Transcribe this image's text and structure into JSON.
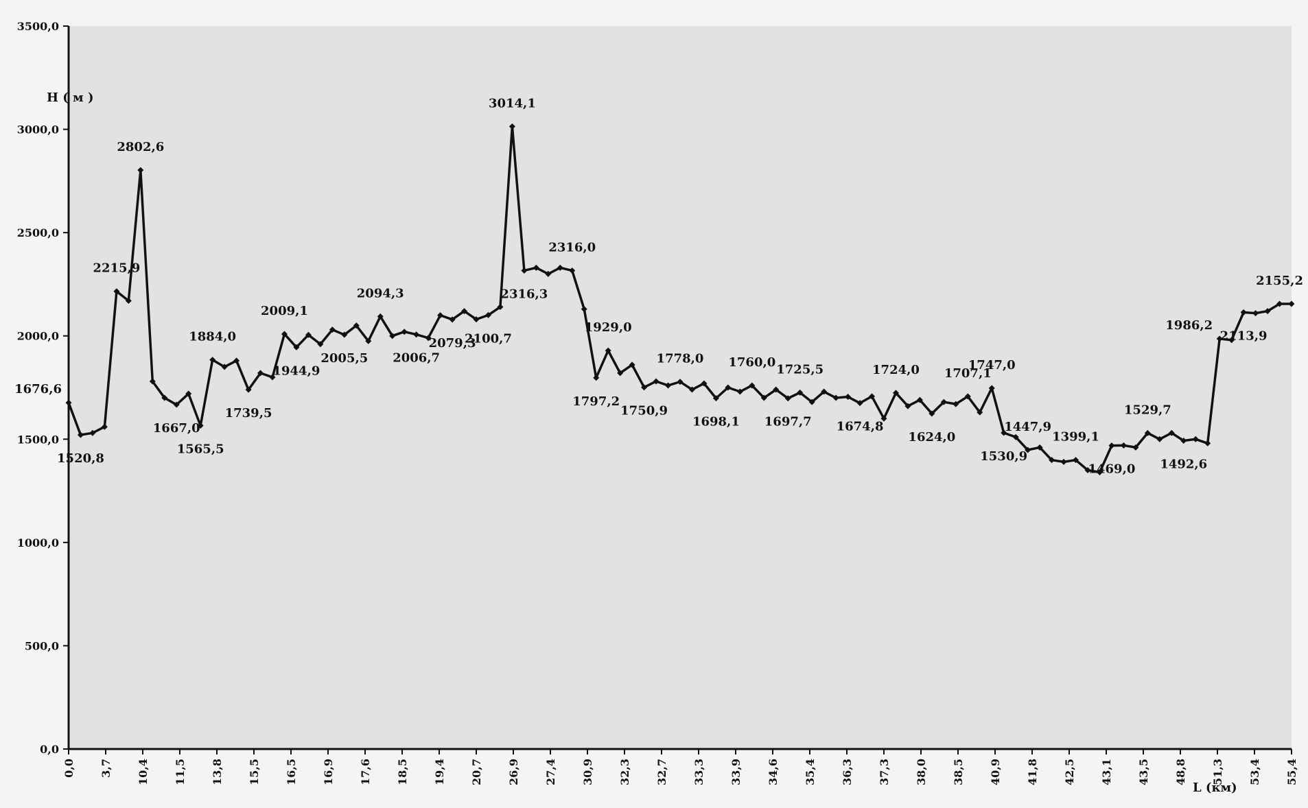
{
  "chart_data": {
    "type": "line",
    "ylabel": "H ( м )",
    "xlabel": "L (км)",
    "ylim": [
      0,
      3500
    ],
    "y_ticks": [
      "0,0",
      "500,0",
      "1000,0",
      "1500,0",
      "2000,0",
      "2500,0",
      "3000,0",
      "3500,0"
    ],
    "x_tick_labels": [
      "0,0",
      "3,7",
      "10,4",
      "11,5",
      "13,8",
      "15,5",
      "16,5",
      "16,9",
      "17,6",
      "18,5",
      "19,4",
      "20,7",
      "26,9",
      "27,4",
      "30,9",
      "32,3",
      "32,7",
      "33,3",
      "33,9",
      "34,6",
      "35,4",
      "36,3",
      "37,3",
      "38,0",
      "38,5",
      "40,9",
      "41,8",
      "42,5",
      "43,1",
      "43,5",
      "48,8",
      "51,3",
      "53,4",
      "55,4"
    ],
    "series": [
      {
        "values": [
          1676.6,
          1520.8,
          1530,
          1560,
          2215.9,
          2170,
          2802.6,
          1780,
          1700,
          1667.0,
          1720,
          1565.5,
          1884.0,
          1850,
          1880,
          1739.5,
          1820,
          1800,
          2009.1,
          1944.9,
          2005,
          1960,
          2030,
          2005.5,
          2050,
          1975,
          2094.3,
          2000,
          2020,
          2006.7,
          1990,
          2100,
          2079.3,
          2120,
          2080,
          2100.7,
          2140,
          3014.1,
          2316.3,
          2330,
          2300,
          2330,
          2316.0,
          2130,
          1797.2,
          1929.0,
          1820,
          1860,
          1750.9,
          1780,
          1760,
          1778.0,
          1740,
          1770,
          1698.1,
          1750,
          1730,
          1760.0,
          1700,
          1740,
          1697.7,
          1725.5,
          1680,
          1730,
          1700,
          1705,
          1674.8,
          1707.1,
          1600,
          1724.0,
          1660,
          1690,
          1624.0,
          1680,
          1670,
          1707.1,
          1630,
          1747.0,
          1530.9,
          1510,
          1447.9,
          1460,
          1399.1,
          1390,
          1399.1,
          1350,
          1340,
          1469.0,
          1470,
          1460,
          1529.7,
          1500,
          1530,
          1492.6,
          1500,
          1480,
          1986.2,
          1980,
          2113.9,
          2110,
          2120,
          2155.2,
          2155.2
        ]
      }
    ],
    "data_labels": [
      {
        "index": 0,
        "text": "1676,6",
        "pos": "left"
      },
      {
        "index": 1,
        "text": "1520,8",
        "pos": "below"
      },
      {
        "index": 4,
        "text": "2215,9",
        "pos": "above"
      },
      {
        "index": 6,
        "text": "2802,6",
        "pos": "above"
      },
      {
        "index": 9,
        "text": "1667,0",
        "pos": "below"
      },
      {
        "index": 11,
        "text": "1565,5",
        "pos": "below"
      },
      {
        "index": 12,
        "text": "1884,0",
        "pos": "above"
      },
      {
        "index": 15,
        "text": "1739,5",
        "pos": "below"
      },
      {
        "index": 18,
        "text": "2009,1",
        "pos": "above"
      },
      {
        "index": 19,
        "text": "1944,9",
        "pos": "below"
      },
      {
        "index": 23,
        "text": "2005,5",
        "pos": "below"
      },
      {
        "index": 26,
        "text": "2094,3",
        "pos": "above"
      },
      {
        "index": 29,
        "text": "2006,7",
        "pos": "below"
      },
      {
        "index": 32,
        "text": "2079,3",
        "pos": "below"
      },
      {
        "index": 35,
        "text": "2100,7",
        "pos": "below"
      },
      {
        "index": 37,
        "text": "3014,1",
        "pos": "above"
      },
      {
        "index": 38,
        "text": "2316,3",
        "pos": "below"
      },
      {
        "index": 42,
        "text": "2316,0",
        "pos": "above"
      },
      {
        "index": 44,
        "text": "1797,2",
        "pos": "below"
      },
      {
        "index": 45,
        "text": "1929,0",
        "pos": "above"
      },
      {
        "index": 48,
        "text": "1750,9",
        "pos": "below"
      },
      {
        "index": 51,
        "text": "1778,0",
        "pos": "above"
      },
      {
        "index": 54,
        "text": "1698,1",
        "pos": "below"
      },
      {
        "index": 57,
        "text": "1760,0",
        "pos": "above"
      },
      {
        "index": 60,
        "text": "1697,7",
        "pos": "below"
      },
      {
        "index": 61,
        "text": "1725,5",
        "pos": "above"
      },
      {
        "index": 66,
        "text": "1674,8",
        "pos": "below"
      },
      {
        "index": 69,
        "text": "1724,0",
        "pos": "above"
      },
      {
        "index": 72,
        "text": "1624,0",
        "pos": "below"
      },
      {
        "index": 75,
        "text": "1707,1",
        "pos": "above"
      },
      {
        "index": 77,
        "text": "1747,0",
        "pos": "above"
      },
      {
        "index": 78,
        "text": "1530,9",
        "pos": "below"
      },
      {
        "index": 80,
        "text": "1447,9",
        "pos": "above"
      },
      {
        "index": 84,
        "text": "1399,1",
        "pos": "above"
      },
      {
        "index": 87,
        "text": "1469,0",
        "pos": "below"
      },
      {
        "index": 90,
        "text": "1529,7",
        "pos": "above"
      },
      {
        "index": 93,
        "text": "1492,6",
        "pos": "below"
      },
      {
        "index": 96,
        "text": "1986,2",
        "pos": "left"
      },
      {
        "index": 98,
        "text": "2113,9",
        "pos": "below"
      },
      {
        "index": 101,
        "text": "2155,2",
        "pos": "above"
      }
    ],
    "grid": false,
    "marker": "diamond",
    "line_color": "#111111"
  }
}
